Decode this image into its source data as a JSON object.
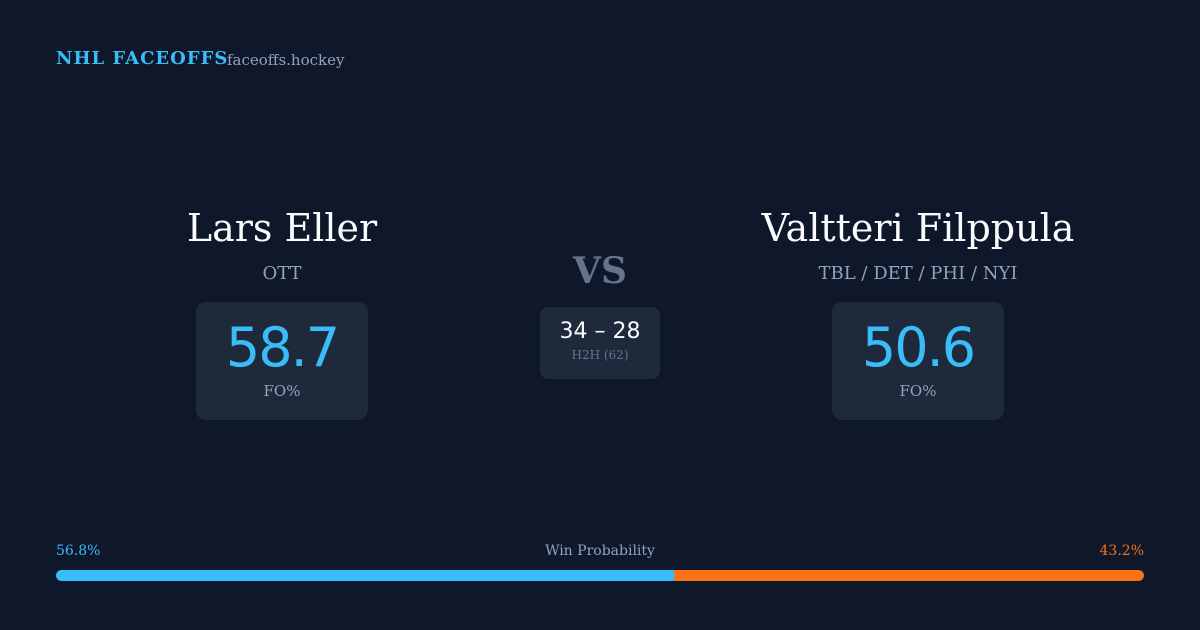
{
  "header": {
    "title": "NHL FACEOFFS",
    "site": "faceoffs.hockey"
  },
  "players": [
    {
      "name": "Lars Eller",
      "team": "OTT",
      "fo_pct": "58.7",
      "fo_label": "FO%"
    },
    {
      "name": "Valtteri Filppula",
      "team": "TBL / DET / PHI / NYI",
      "fo_pct": "50.6",
      "fo_label": "FO%"
    }
  ],
  "vs": "VS",
  "h2h": {
    "score": "34 – 28",
    "label": "H2H (62)"
  },
  "win_probability": {
    "label": "Win Probability",
    "values": [
      56.8,
      43.2
    ],
    "value_labels": [
      "56.8%",
      "43.2%"
    ],
    "colors": [
      "#38bdf8",
      "#f97316"
    ]
  }
}
